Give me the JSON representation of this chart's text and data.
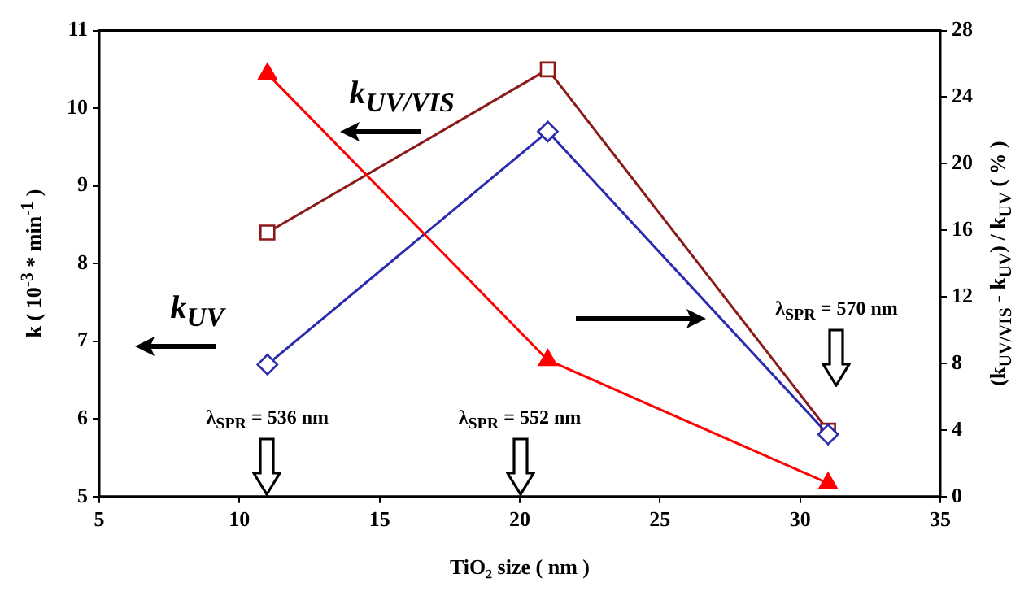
{
  "chart_data": {
    "type": "line",
    "xlabel": "TiO₂ size ( nm )",
    "ylabel": "k ( 10$^{-3}$ * min$^{-1}$ )",
    "y2label": "(k$_{UV/VIS}$ - k$_{UV}$) / k$_{UV}$ ( % )",
    "x": [
      11,
      21,
      31
    ],
    "series": [
      {
        "color": "#8b1a1a",
        "marker": "square",
        "values": [
          8.4,
          10.5,
          5.85
        ]
      },
      {
        "color": "#2b2bb0",
        "marker": "diamond",
        "values": [
          6.7,
          9.7,
          5.8
        ]
      },
      {
        "color": "#ff0000",
        "marker": "triangle",
        "axis": "y2",
        "values": [
          25.4,
          8.2,
          0.8
        ]
      }
    ],
    "xlim": [
      5,
      35
    ],
    "xticks": [
      5,
      10,
      15,
      20,
      25,
      30,
      35
    ],
    "ylim": [
      5,
      11
    ],
    "yticks": [
      5,
      6,
      7,
      8,
      9,
      10,
      11
    ],
    "y2lim": [
      0,
      28
    ],
    "y2ticks": [
      0,
      4,
      8,
      12,
      16,
      20,
      24,
      28
    ],
    "grid": false,
    "legend": false,
    "annotations": [
      "k$_{UV/VIS}$",
      "k$_{UV}$",
      "λ$_{SPR}$ = 536 nm",
      "λ$_{SPR}$ = 552 nm",
      "λ$_{SPR}$ = 570 nm"
    ]
  }
}
